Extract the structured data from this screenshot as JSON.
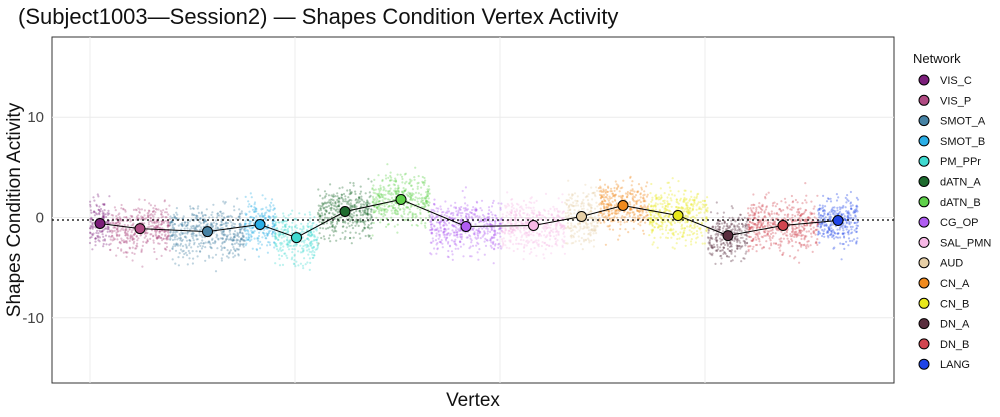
{
  "chart_data": {
    "type": "scatter",
    "title": "(Subject1003—Session2) — Shapes Condition Vertex Activity",
    "xlabel": "Vertex",
    "ylabel": "Shapes Condition Activity",
    "ylim": [
      -16.5,
      18
    ],
    "yticks": [
      -10,
      0,
      10
    ],
    "ytick_labels": [
      "-10",
      "0",
      "10"
    ],
    "reference_line_y": 0,
    "grid": true,
    "legend": {
      "title": "Network",
      "position": "right"
    },
    "networks": [
      {
        "name": "VIS_C",
        "color": "#7b1e7a",
        "mean": -0.6
      },
      {
        "name": "VIS_P",
        "color": "#b04a82",
        "mean": -1.1
      },
      {
        "name": "SMOT_A",
        "color": "#4682a4",
        "mean": -1.4
      },
      {
        "name": "SMOT_B",
        "color": "#2aaee6",
        "mean": -0.7
      },
      {
        "name": "PM_PPr",
        "color": "#3fdad0",
        "mean": -2.0
      },
      {
        "name": "dATN_A",
        "color": "#1e6b2e",
        "mean": 0.6
      },
      {
        "name": "dATN_B",
        "color": "#5fd14a",
        "mean": 1.8
      },
      {
        "name": "CG_OP",
        "color": "#b05cf2",
        "mean": -0.9
      },
      {
        "name": "SAL_PMN",
        "color": "#f7b8e6",
        "mean": -0.8
      },
      {
        "name": "AUD",
        "color": "#e6cfa6",
        "mean": 0.1
      },
      {
        "name": "CN_A",
        "color": "#f08a1e",
        "mean": 1.2
      },
      {
        "name": "CN_B",
        "color": "#e8e81a",
        "mean": 0.2
      },
      {
        "name": "DN_A",
        "color": "#5a2e3e",
        "mean": -1.8
      },
      {
        "name": "DN_B",
        "color": "#d1454f",
        "mean": -0.8
      },
      {
        "name": "LANG",
        "color": "#1f44e8",
        "mean": -0.3
      }
    ]
  }
}
